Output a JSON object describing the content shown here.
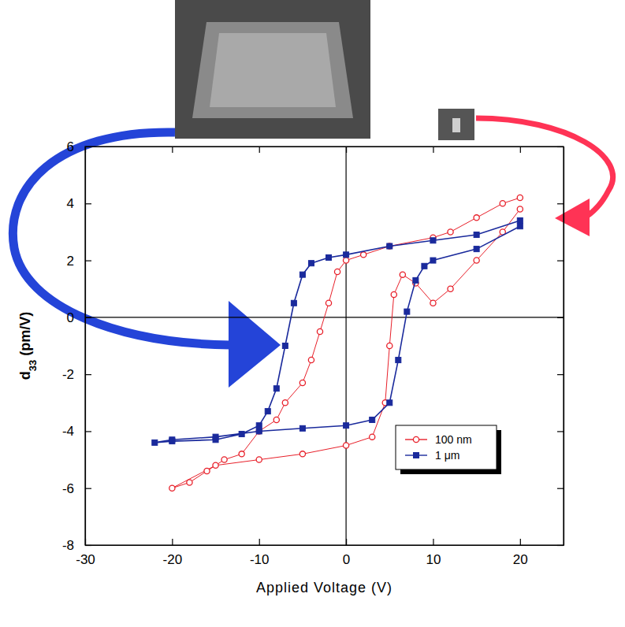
{
  "chart_data": {
    "type": "line",
    "x_label": "Applied Voltage (V)",
    "y_label": "d33 (pm/V)",
    "xlim": [
      -30,
      25
    ],
    "ylim": [
      -8,
      6
    ],
    "xticks": [
      -30,
      -20,
      -10,
      0,
      10,
      20
    ],
    "yticks": [
      -8,
      -6,
      -4,
      -2,
      0,
      2,
      4,
      6
    ],
    "legend": "lower right",
    "series": [
      {
        "name": "100 nm",
        "color": "#e8202a",
        "marker": "circle-open",
        "line_style": "solid",
        "x": [
          20,
          18,
          15,
          12,
          10,
          5,
          2,
          0,
          -1,
          -2,
          -3,
          -4,
          -5,
          -7,
          -8,
          -10,
          -12,
          -14,
          -16,
          -18,
          -20,
          -15,
          -10,
          -5,
          0,
          3,
          4.5,
          5,
          5.5,
          6.5,
          8,
          10,
          12,
          15,
          18,
          20
        ],
        "values": [
          4.2,
          4.0,
          3.5,
          3.0,
          2.8,
          2.5,
          2.2,
          2.0,
          1.6,
          0.5,
          -0.5,
          -1.5,
          -2.3,
          -3.0,
          -3.6,
          -4.0,
          -4.8,
          -5.0,
          -5.4,
          -5.8,
          -6.0,
          -5.2,
          -5.0,
          -4.8,
          -4.5,
          -4.2,
          -3.0,
          -1.0,
          0.8,
          1.5,
          1.2,
          0.5,
          1.0,
          2.0,
          3.0,
          3.8
        ]
      },
      {
        "name": "1 μm",
        "color": "#1a2a9c",
        "marker": "square",
        "line_style": "solid",
        "x": [
          20,
          15,
          10,
          5,
          0,
          -2,
          -4,
          -5,
          -6,
          -7,
          -8,
          -9,
          -10,
          -12,
          -15,
          -20,
          -22,
          -20,
          -15,
          -10,
          -5,
          0,
          3,
          5,
          6,
          7,
          8,
          9,
          10,
          15,
          20
        ],
        "values": [
          3.4,
          2.9,
          2.7,
          2.5,
          2.2,
          2.1,
          1.9,
          1.5,
          0.5,
          -1,
          -2.5,
          -3.3,
          -3.8,
          -4.1,
          -4.3,
          -4.35,
          -4.4,
          -4.3,
          -4.2,
          -4.0,
          -3.9,
          -3.8,
          -3.6,
          -3.0,
          -1.5,
          0.2,
          1.3,
          1.8,
          2.0,
          2.4,
          3.2
        ]
      }
    ]
  }
}
